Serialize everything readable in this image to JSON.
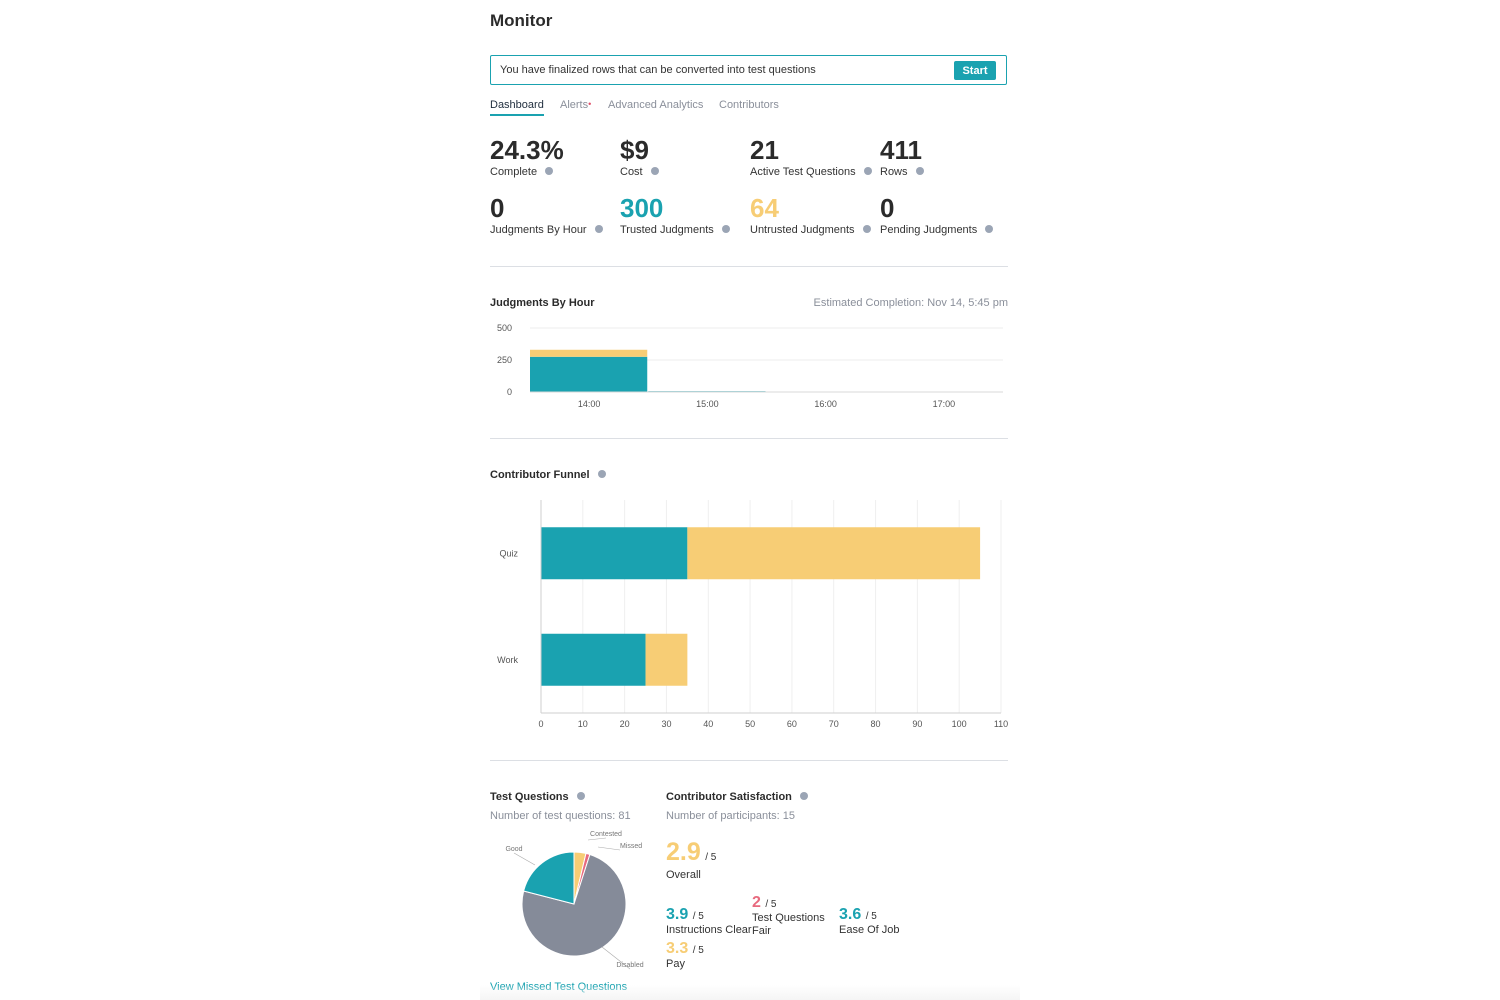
{
  "header": {
    "title": "Monitor"
  },
  "banner": {
    "message": "You have finalized rows that can be converted into test questions",
    "button_label": "Start"
  },
  "tabs": [
    {
      "label": "Dashboard",
      "active": true
    },
    {
      "label": "Alerts",
      "badge": "•"
    },
    {
      "label": "Advanced Analytics"
    },
    {
      "label": "Contributors"
    }
  ],
  "stats": [
    {
      "value": "24.3%",
      "label": "Complete",
      "color": "#2b2b2b"
    },
    {
      "value": "$9",
      "label": "Cost",
      "color": "#2b2b2b"
    },
    {
      "value": "21",
      "label": "Active Test Questions",
      "color": "#2b2b2b"
    },
    {
      "value": "411",
      "label": "Rows",
      "color": "#2b2b2b"
    },
    {
      "value": "0",
      "label": "Judgments By Hour",
      "color": "#2b2b2b"
    },
    {
      "value": "300",
      "label": "Trusted Judgments",
      "color": "#1aa2b0"
    },
    {
      "value": "64",
      "label": "Untrusted Judgments",
      "color": "#f7cd75"
    },
    {
      "value": "0",
      "label": "Pending Judgments",
      "color": "#2b2b2b"
    }
  ],
  "judgments_chart": {
    "title": "Judgments By Hour",
    "estimate_label": "Estimated Completion:",
    "estimate_value": "Nov 14, 5:45 pm"
  },
  "funnel": {
    "title": "Contributor Funnel"
  },
  "test_questions": {
    "title": "Test Questions",
    "count_text": "Number of test questions: 81",
    "link_text": "View Missed Test Questions"
  },
  "satisfaction": {
    "title": "Contributor Satisfaction",
    "participants_text": "Number of participants: 15",
    "overall": {
      "value": "2.9",
      "denominator": "/ 5",
      "label": "Overall",
      "color": "#f7cd75"
    },
    "items": [
      {
        "value": "3.9",
        "denominator": "/ 5",
        "label": "Instructions Clear",
        "color": "#1aa2b0"
      },
      {
        "value": "2",
        "denominator": "/ 5",
        "label": "Test Questions Fair",
        "color": "#e86a7e"
      },
      {
        "value": "3.6",
        "denominator": "/ 5",
        "label": "Ease Of Job",
        "color": "#1aa2b0"
      },
      {
        "value": "3.3",
        "denominator": "/ 5",
        "label": "Pay",
        "color": "#f7cd75"
      }
    ]
  },
  "colors": {
    "trusted": "#1aa2b0",
    "untrusted": "#f7cd75",
    "disabled": "#858b99",
    "missed": "#e86a7e"
  },
  "chart_data": [
    {
      "type": "bar",
      "title": "Judgments By Hour",
      "categories": [
        "14:00",
        "15:00",
        "16:00",
        "17:00"
      ],
      "series": [
        {
          "values": [
            275,
            6,
            0,
            0
          ]
        },
        {
          "values": [
            55,
            0,
            0,
            0
          ]
        }
      ],
      "ylim": [
        0,
        500
      ],
      "yticks": [
        0,
        250,
        500
      ],
      "grid": true,
      "legend": "none"
    },
    {
      "type": "bar",
      "orientation": "horizontal",
      "title": "Contributor Funnel",
      "categories": [
        "Quiz",
        "Work"
      ],
      "series": [
        {
          "values": [
            35,
            25
          ]
        },
        {
          "values": [
            70,
            10
          ]
        }
      ],
      "xlim": [
        0,
        110
      ],
      "xticks": [
        0,
        10,
        20,
        30,
        40,
        50,
        60,
        70,
        80,
        90,
        100,
        110
      ],
      "grid": true,
      "legend": "none"
    },
    {
      "type": "pie",
      "title": "Test Questions",
      "slices": [
        {
          "label": "Disabled",
          "value": 60
        },
        {
          "label": "Good",
          "value": 17
        },
        {
          "label": "Contested",
          "value": 3
        },
        {
          "label": "Missed",
          "value": 1
        }
      ]
    }
  ]
}
